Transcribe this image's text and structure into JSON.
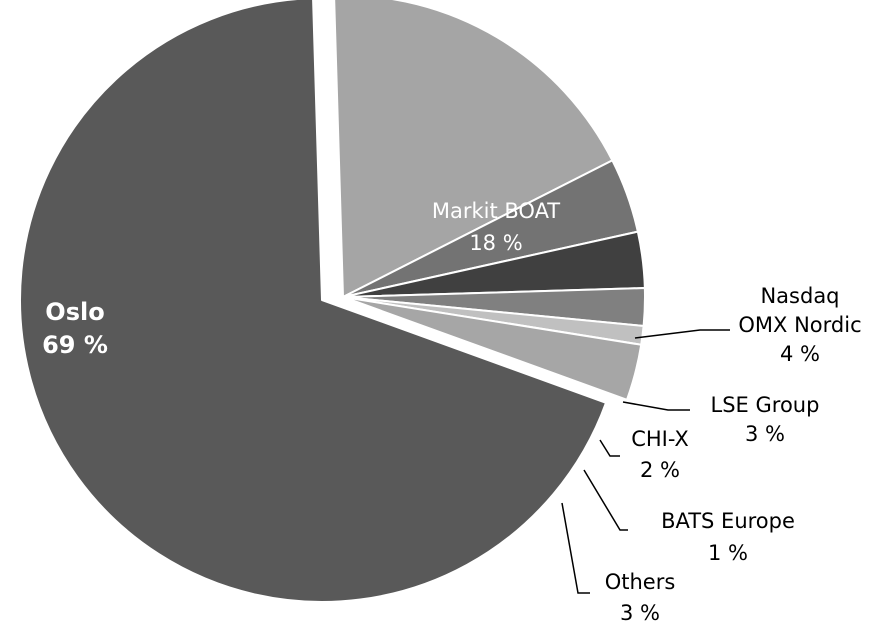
{
  "chart_data": {
    "type": "pie",
    "title": "",
    "slices": [
      {
        "label": "Oslo",
        "percent_label": "69 %",
        "value": 69,
        "color": "#595959",
        "text_color": "#ffffff",
        "bold": true,
        "exploded": false
      },
      {
        "label": "Markit BOAT",
        "percent_label": "18 %",
        "value": 18,
        "color": "#a5a5a5",
        "text_color": "#ffffff",
        "bold": false,
        "exploded": true
      },
      {
        "label": "Nasdaq OMX Nordic",
        "label_lines": [
          "Nasdaq",
          "OMX Nordic"
        ],
        "percent_label": "4 %",
        "value": 4,
        "color": "#737373",
        "text_color": "#000000",
        "bold": false,
        "exploded": true
      },
      {
        "label": "LSE Group",
        "percent_label": "3 %",
        "value": 3,
        "color": "#404040",
        "text_color": "#000000",
        "bold": false,
        "exploded": true
      },
      {
        "label": "CHI-X",
        "percent_label": "2 %",
        "value": 2,
        "color": "#808080",
        "text_color": "#000000",
        "bold": false,
        "exploded": true
      },
      {
        "label": "BATS Europe",
        "percent_label": "1 %",
        "value": 1,
        "color": "#c0c0c0",
        "text_color": "#000000",
        "bold": false,
        "exploded": true
      },
      {
        "label": "Others",
        "percent_label": "3 %",
        "value": 3,
        "color": "#a6a6a6",
        "text_color": "#000000",
        "bold": false,
        "exploded": true
      }
    ],
    "legend": "none"
  }
}
